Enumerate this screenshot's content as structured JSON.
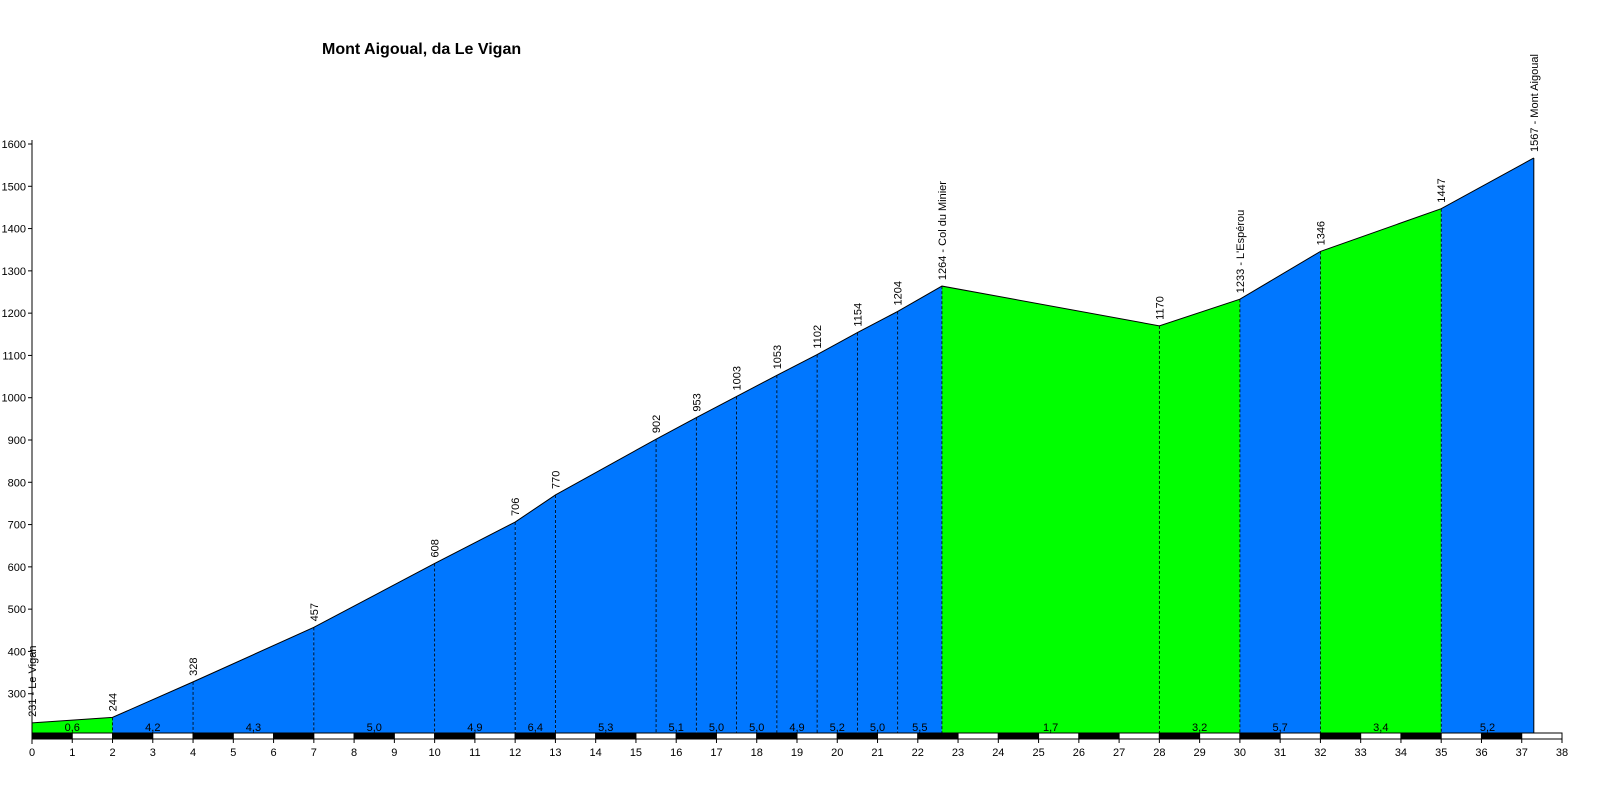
{
  "colors": {
    "climb": "#0077ff",
    "easy": "#00ff00",
    "outline": "#000000"
  },
  "chart_data": {
    "type": "area",
    "title": "Mont Aigoual, da Le Vigan",
    "xlabel": "",
    "ylabel": "",
    "xlim": [
      0,
      38
    ],
    "ylim": [
      200,
      1600
    ],
    "x_ticks": [
      0,
      1,
      2,
      3,
      4,
      5,
      6,
      7,
      8,
      9,
      10,
      11,
      12,
      13,
      14,
      15,
      16,
      17,
      18,
      19,
      20,
      21,
      22,
      23,
      24,
      25,
      26,
      27,
      28,
      29,
      30,
      31,
      32,
      33,
      34,
      35,
      36,
      37,
      38
    ],
    "y_ticks": [
      300,
      400,
      500,
      600,
      700,
      800,
      900,
      1000,
      1100,
      1200,
      1300,
      1400,
      1500,
      1600
    ],
    "points": [
      {
        "x": 0,
        "y": 231,
        "label": "231 - Le Vigan"
      },
      {
        "x": 2,
        "y": 244,
        "label": "244"
      },
      {
        "x": 4,
        "y": 328,
        "label": "328"
      },
      {
        "x": 7,
        "y": 457,
        "label": "457"
      },
      {
        "x": 10,
        "y": 608,
        "label": "608"
      },
      {
        "x": 12,
        "y": 706,
        "label": "706"
      },
      {
        "x": 13,
        "y": 770,
        "label": "770"
      },
      {
        "x": 15.5,
        "y": 902,
        "label": "902"
      },
      {
        "x": 16.5,
        "y": 953,
        "label": "953"
      },
      {
        "x": 17.5,
        "y": 1003,
        "label": "1003"
      },
      {
        "x": 18.5,
        "y": 1053,
        "label": "1053"
      },
      {
        "x": 19.5,
        "y": 1102,
        "label": "1102"
      },
      {
        "x": 20.5,
        "y": 1154,
        "label": "1154"
      },
      {
        "x": 21.5,
        "y": 1204,
        "label": "1204"
      },
      {
        "x": 22.6,
        "y": 1264,
        "label": "1264 - Col du Minier"
      },
      {
        "x": 28,
        "y": 1170,
        "label": "1170"
      },
      {
        "x": 30,
        "y": 1233,
        "label": "1233 - L'Espérou"
      },
      {
        "x": 32,
        "y": 1346,
        "label": "1346"
      },
      {
        "x": 35,
        "y": 1447,
        "label": "1447"
      },
      {
        "x": 37.3,
        "y": 1567,
        "label": "1567 - Mont Aigoual"
      }
    ],
    "segments": [
      {
        "label": "0,6",
        "color": "easy"
      },
      {
        "label": "4,2",
        "color": "climb"
      },
      {
        "label": "4,3",
        "color": "climb"
      },
      {
        "label": "5,0",
        "color": "climb"
      },
      {
        "label": "4,9",
        "color": "climb"
      },
      {
        "label": "6,4",
        "color": "climb"
      },
      {
        "label": "5,3",
        "color": "climb"
      },
      {
        "label": "5,1",
        "color": "climb"
      },
      {
        "label": "5,0",
        "color": "climb"
      },
      {
        "label": "5,0",
        "color": "climb"
      },
      {
        "label": "4,9",
        "color": "climb"
      },
      {
        "label": "5,2",
        "color": "climb"
      },
      {
        "label": "5,0",
        "color": "climb"
      },
      {
        "label": "5,5",
        "color": "climb"
      },
      {
        "label": "1,7",
        "color": "easy"
      },
      {
        "label": "3,2",
        "color": "easy"
      },
      {
        "label": "5,7",
        "color": "climb"
      },
      {
        "label": "3,4",
        "color": "easy"
      },
      {
        "label": "5,2",
        "color": "climb"
      }
    ]
  }
}
